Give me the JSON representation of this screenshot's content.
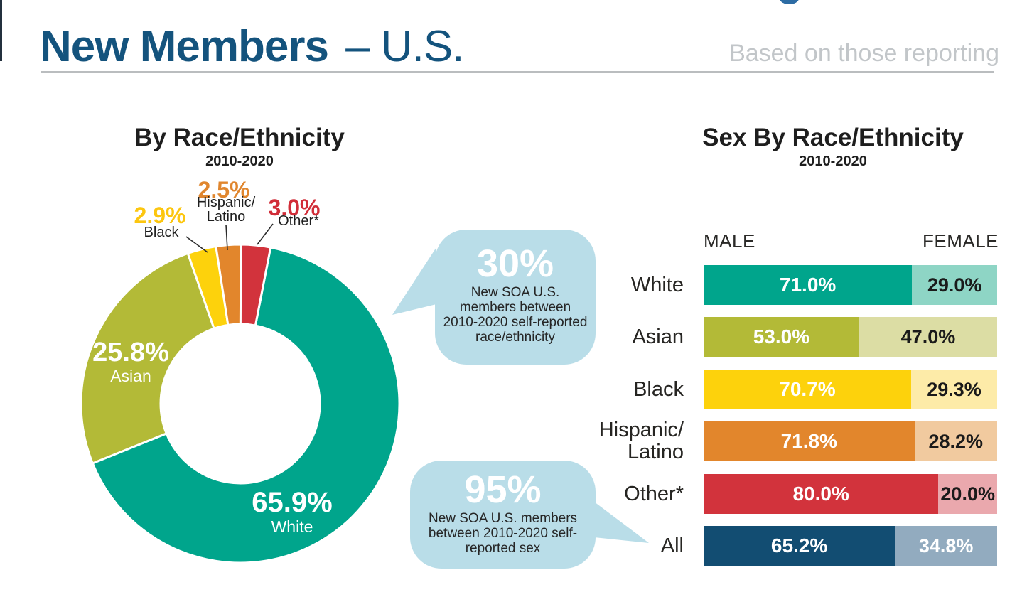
{
  "header": {
    "title_strong": "New Members",
    "title_light": "– U.S.",
    "tagline": "Based on those reporting"
  },
  "race_chart": {
    "title": "By Race/Ethnicity",
    "subtitle": "2010-2020",
    "inner_labels": [
      {
        "pct": "25.8%",
        "name": "Asian"
      },
      {
        "pct": "65.9%",
        "name": "White"
      }
    ],
    "outer_labels": [
      {
        "pct": "2.9%",
        "name": "Black"
      },
      {
        "pct": "2.5%",
        "name_line1": "Hispanic/",
        "name_line2": "Latino"
      },
      {
        "pct": "3.0%",
        "name": "Other*"
      }
    ]
  },
  "race_callout": {
    "value": "30%",
    "lines": [
      "New SOA U.S.",
      "members between",
      "2010-2020 self-reported",
      "race/ethnicity"
    ]
  },
  "sex_callout": {
    "value": "95%",
    "lines": [
      "New SOA U.S. members",
      "between 2010-2020 self-",
      "reported sex"
    ]
  },
  "sex_chart": {
    "title": "Sex By Race/Ethnicity",
    "subtitle": "2010-2020",
    "male_header": "MALE",
    "female_header": "FEMALE"
  },
  "colors": {
    "title_navy": "#14537d",
    "tagline_gray": "#c2c6c9",
    "bubble_blue": "#b9dde8",
    "teal": "#00a58c",
    "teal_light": "#8ed5c5",
    "olive": "#b3ba37",
    "olive_light": "#dcdda4",
    "yellow": "#fdd20c",
    "yellow_light": "#fdeba8",
    "orange": "#e2862c",
    "orange_light": "#f1ca9f",
    "red": "#d2333c",
    "red_light": "#eaa8ad",
    "navy": "#124d72",
    "slate": "#92abbf"
  },
  "chart_data": [
    {
      "type": "pie",
      "donut": true,
      "title": "By Race/Ethnicity",
      "subtitle": "2010-2020",
      "start_angle_deg": 11,
      "categories": [
        "White",
        "Asian",
        "Black",
        "Hispanic/Latino",
        "Other*"
      ],
      "values": [
        65.9,
        25.8,
        2.9,
        2.5,
        3.0
      ],
      "slices": [
        {
          "category": "White",
          "value": 65.9,
          "label": "65.9%",
          "color": "#00a58c"
        },
        {
          "category": "Asian",
          "value": 25.8,
          "label": "25.8%",
          "color": "#b3ba37"
        },
        {
          "category": "Black",
          "value": 2.9,
          "label": "2.9%",
          "color": "#fdd20c"
        },
        {
          "category": "Hispanic/Latino",
          "value": 2.5,
          "label": "2.5%",
          "color": "#e2862c"
        },
        {
          "category": "Other*",
          "value": 3.0,
          "label": "3.0%",
          "color": "#d2333c"
        }
      ]
    },
    {
      "type": "bar",
      "stacked": true,
      "orientation": "horizontal",
      "title": "Sex By Race/Ethnicity",
      "subtitle": "2010-2020",
      "series_names": [
        "MALE",
        "FEMALE"
      ],
      "categories": [
        "White",
        "Asian",
        "Black",
        "Hispanic/Latino",
        "Other*",
        "All"
      ],
      "rows": [
        {
          "category": "White",
          "label_lines": [
            "White"
          ],
          "male": 71.0,
          "female": 29.0,
          "male_label": "71.0%",
          "female_label": "29.0%",
          "male_color": "#00a58c",
          "female_color": "#8ed5c5",
          "female_text": "#1a1a1a"
        },
        {
          "category": "Asian",
          "label_lines": [
            "Asian"
          ],
          "male": 53.0,
          "female": 47.0,
          "male_label": "53.0%",
          "female_label": "47.0%",
          "male_color": "#b3ba37",
          "female_color": "#dcdda4",
          "female_text": "#1a1a1a"
        },
        {
          "category": "Black",
          "label_lines": [
            "Black"
          ],
          "male": 70.7,
          "female": 29.3,
          "male_label": "70.7%",
          "female_label": "29.3%",
          "male_color": "#fdd20c",
          "female_color": "#fdeba8",
          "female_text": "#1a1a1a"
        },
        {
          "category": "Hispanic/Latino",
          "label_lines": [
            "Hispanic/",
            "Latino"
          ],
          "male": 71.8,
          "female": 28.2,
          "male_label": "71.8%",
          "female_label": "28.2%",
          "male_color": "#e2862c",
          "female_color": "#f1ca9f",
          "female_text": "#1a1a1a"
        },
        {
          "category": "Other*",
          "label_lines": [
            "Other*"
          ],
          "male": 80.0,
          "female": 20.0,
          "male_label": "80.0%",
          "female_label": "20.0%",
          "male_color": "#d2333c",
          "female_color": "#eaa8ad",
          "female_text": "#1a1a1a"
        },
        {
          "category": "All",
          "label_lines": [
            "All"
          ],
          "male": 65.2,
          "female": 34.8,
          "male_label": "65.2%",
          "female_label": "34.8%",
          "male_color": "#124d72",
          "female_color": "#92abbf",
          "female_text": "#ffffff"
        }
      ]
    }
  ]
}
